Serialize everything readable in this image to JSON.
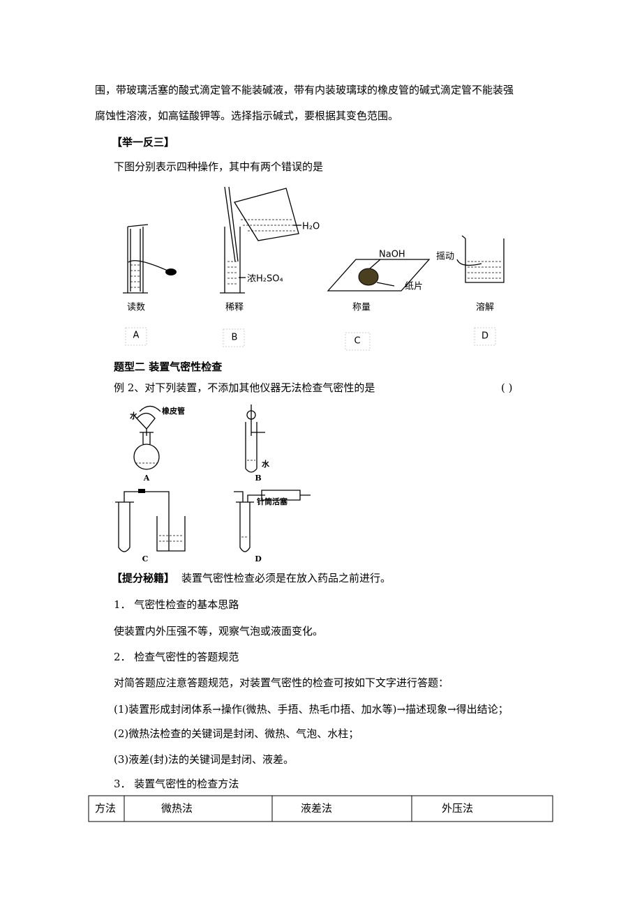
{
  "paragraphs_top": [
    "围，带玻璃活塞的酸式滴定管不能装碱液，带有内装玻璃球的橡皮管的碱式滴定管不能装强",
    "腐蚀性溶液，如高锰酸钾等。选择指示碱式，要根据其变色范围。"
  ],
  "section1": {
    "heading": "【举一反三】",
    "question": "下图分别表示四种操作，其中有两个错误的是"
  },
  "figure1": {
    "captions": [
      "读数",
      "稀释",
      "称量",
      "溶解"
    ],
    "letters": [
      "A",
      "B",
      "C",
      "D"
    ],
    "h2o": "H₂O",
    "h2so4": "浓H₂SO₄",
    "naoh": "NaOH",
    "paper": "纸片",
    "shake": "摇动"
  },
  "section2": {
    "heading": "题型二  装置气密性检查",
    "example": "例 2、对下列装置，不添加其他仪器无法检查气密性的是",
    "blank": "(      )"
  },
  "figure2": {
    "letters": [
      "A",
      "B",
      "C",
      "D"
    ],
    "water_a": "水",
    "rubber": "橡皮管",
    "water_b": "水",
    "syringe": "针筒活塞"
  },
  "tips": {
    "heading": "【提分秘籍】",
    "text": "装置气密性检查必须是在放入药品之前进行。"
  },
  "items": [
    "1．  气密性检查的基本思路",
    "使装置内外压强不等，观察气泡或液面变化。",
    "2．  检查气密性的答题规范",
    "对简答题应注意答题规范，对装置气密性的检查可按如下文字进行答题：",
    "(1)装置形成封闭体系→操作(微热、手捂、热毛巾捂、加水等)→描述现象→得出结论；",
    "(2)微热法检查的关键词是封闭、微热、气泡、水柱；",
    "(3)液差(封)法的关键词是封闭、液差。",
    "3．  装置气密性的检查方法"
  ],
  "table": {
    "header": [
      "方法",
      "微热法",
      "液差法",
      "外压法"
    ]
  }
}
